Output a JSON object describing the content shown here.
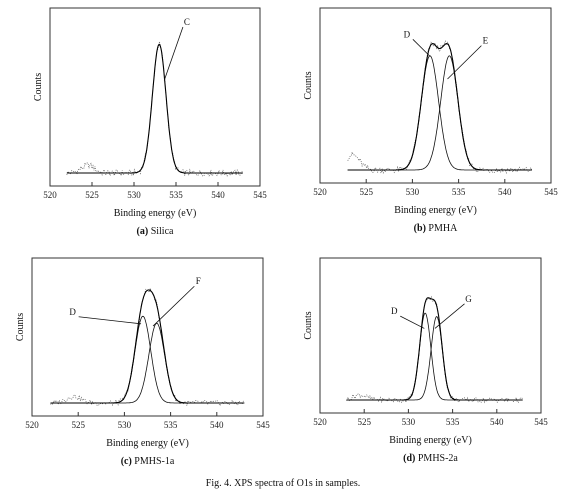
{
  "figure_caption": "Fig. 4.  XPS spectra of O1s in samples.",
  "chart_data": [
    {
      "type": "line",
      "panel_tag": "(a)",
      "panel_name": "Silica",
      "xlabel": "Binding energy (eV)",
      "ylabel": "Counts",
      "xlim": [
        520,
        545
      ],
      "xticks": [
        520,
        525,
        530,
        535,
        540,
        545
      ],
      "grid": false,
      "baseline_range": [
        522,
        543
      ],
      "peaks": [
        {
          "name": "C",
          "center": 533.0,
          "fwhm": 1.9,
          "height": 1.0
        }
      ],
      "labels": [
        {
          "text": "C",
          "x": 536.3,
          "y": 1.15,
          "target": [
            533.6,
            0.72
          ]
        }
      ],
      "noise": [
        {
          "x": 524.5,
          "y": 0.06
        }
      ]
    },
    {
      "type": "line",
      "panel_tag": "(b)",
      "panel_name": "PMHA",
      "xlabel": "Binding energy (eV)",
      "ylabel": "Counts",
      "xlim": [
        520,
        545
      ],
      "xticks": [
        520,
        525,
        530,
        535,
        540,
        545
      ],
      "grid": false,
      "baseline_range": [
        523,
        543
      ],
      "peaks": [
        {
          "name": "D",
          "center": 531.9,
          "fwhm": 2.2,
          "height": 0.9
        },
        {
          "name": "E",
          "center": 534.0,
          "fwhm": 2.2,
          "height": 0.9
        }
      ],
      "labels": [
        {
          "text": "D",
          "x": 529.4,
          "y": 1.05,
          "target": [
            531.9,
            0.9
          ]
        },
        {
          "text": "E",
          "x": 537.9,
          "y": 1.0,
          "target": [
            533.8,
            0.72
          ]
        }
      ],
      "noise": [
        {
          "x": 523.5,
          "y": 0.12
        }
      ]
    },
    {
      "type": "line",
      "panel_tag": "(c)",
      "panel_name": "PMHS-1a",
      "xlabel": "Binding energy (eV)",
      "ylabel": "Counts",
      "xlim": [
        520,
        545
      ],
      "xticks": [
        520,
        525,
        530,
        535,
        540,
        545
      ],
      "grid": false,
      "baseline_range": [
        522,
        543
      ],
      "peaks": [
        {
          "name": "D",
          "center": 532.0,
          "fwhm": 2.0,
          "height": 0.74
        },
        {
          "name": "F",
          "center": 533.5,
          "fwhm": 2.0,
          "height": 0.68
        }
      ],
      "labels": [
        {
          "text": "D",
          "x": 524.4,
          "y": 0.78,
          "target": [
            531.8,
            0.7
          ]
        },
        {
          "text": "F",
          "x": 538.0,
          "y": 1.05,
          "target": [
            533.1,
            0.68
          ]
        }
      ],
      "noise": [
        {
          "x": 524.5,
          "y": 0.06
        }
      ]
    },
    {
      "type": "line",
      "panel_tag": "(d)",
      "panel_name": "PMHS-2a",
      "xlabel": "Binding energy (eV)",
      "ylabel": "Counts",
      "xlim": [
        520,
        545
      ],
      "xticks": [
        520,
        525,
        530,
        535,
        540,
        545
      ],
      "grid": false,
      "baseline_range": [
        523,
        543
      ],
      "peaks": [
        {
          "name": "D",
          "center": 531.9,
          "fwhm": 1.5,
          "height": 0.74
        },
        {
          "name": "G",
          "center": 533.2,
          "fwhm": 1.5,
          "height": 0.71
        }
      ],
      "labels": [
        {
          "text": "D",
          "x": 528.4,
          "y": 0.84,
          "target": [
            531.8,
            0.7
          ]
        },
        {
          "text": "G",
          "x": 536.8,
          "y": 0.96,
          "target": [
            533.0,
            0.7
          ]
        }
      ],
      "noise": [
        {
          "x": 524.5,
          "y": 0.05
        }
      ]
    }
  ]
}
